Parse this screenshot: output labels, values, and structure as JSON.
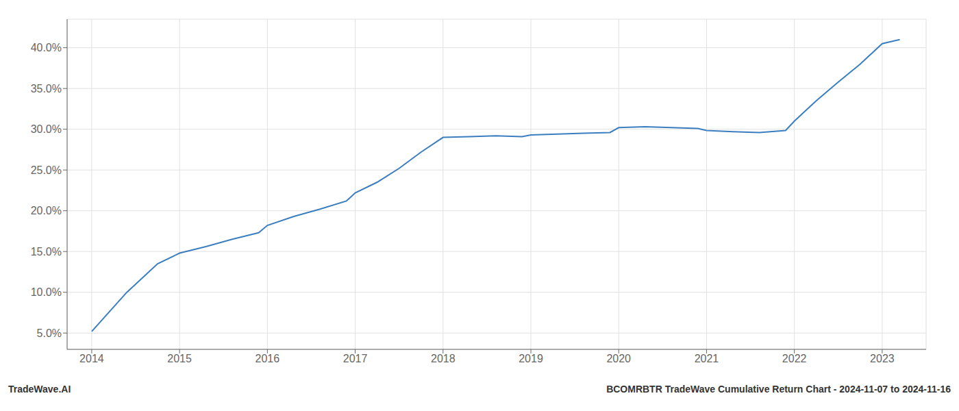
{
  "chart_data": {
    "type": "line",
    "x": [
      2014.0,
      2014.15,
      2014.4,
      2014.75,
      2015.0,
      2015.3,
      2015.6,
      2015.9,
      2016.0,
      2016.3,
      2016.6,
      2016.9,
      2017.0,
      2017.25,
      2017.5,
      2017.75,
      2018.0,
      2018.3,
      2018.6,
      2018.9,
      2019.0,
      2019.3,
      2019.6,
      2019.9,
      2020.0,
      2020.3,
      2020.6,
      2020.9,
      2021.0,
      2021.3,
      2021.6,
      2021.9,
      2022.0,
      2022.25,
      2022.5,
      2022.75,
      2023.0,
      2023.2
    ],
    "values": [
      5.2,
      7.0,
      10.0,
      13.5,
      14.8,
      15.6,
      16.5,
      17.3,
      18.2,
      19.3,
      20.2,
      21.2,
      22.2,
      23.5,
      25.2,
      27.2,
      29.0,
      29.1,
      29.2,
      29.1,
      29.3,
      29.4,
      29.5,
      29.6,
      30.2,
      30.3,
      30.2,
      30.1,
      29.85,
      29.7,
      29.6,
      29.85,
      31.0,
      33.5,
      35.8,
      38.0,
      40.5,
      41.0
    ],
    "color": "#3a7ebf",
    "xlim": [
      2013.72,
      2023.5
    ],
    "xticks": [
      2014,
      2015,
      2016,
      2017,
      2018,
      2019,
      2020,
      2021,
      2022,
      2023
    ],
    "ylim": [
      3.0,
      43.5
    ],
    "yticks": [
      {
        "value": 5.0,
        "label": "5.0%"
      },
      {
        "value": 10.0,
        "label": "10.0%"
      },
      {
        "value": 15.0,
        "label": "15.0%"
      },
      {
        "value": 20.0,
        "label": "20.0%"
      },
      {
        "value": 25.0,
        "label": "25.0%"
      },
      {
        "value": 30.0,
        "label": "30.0%"
      },
      {
        "value": 35.0,
        "label": "35.0%"
      },
      {
        "value": 40.0,
        "label": "40.0%"
      }
    ],
    "grid": true,
    "annotations": [
      "TradeWave.AI",
      "BCOMRBTR TradeWave Cumulative Return Chart - 2024-11-07 to 2024-11-16"
    ]
  }
}
